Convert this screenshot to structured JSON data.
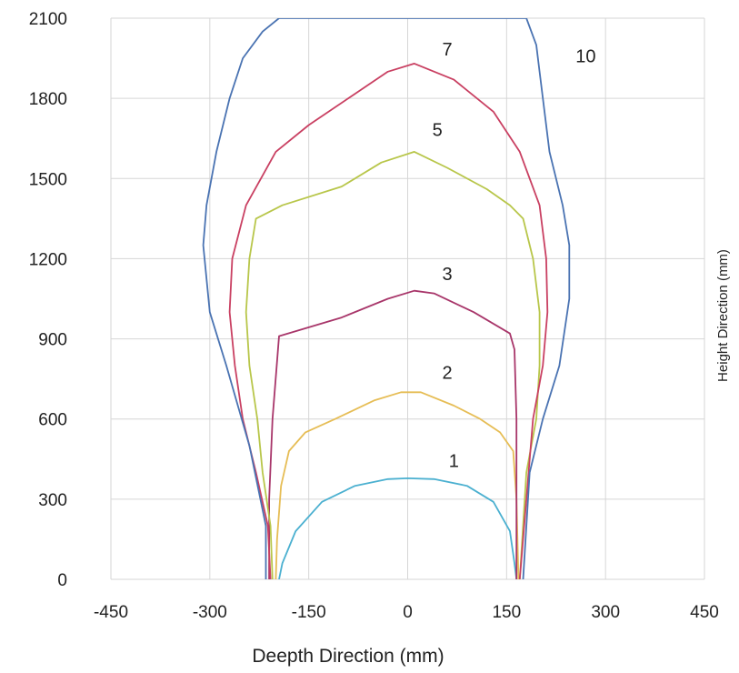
{
  "chart_data": {
    "type": "line",
    "title": "",
    "xlabel": "Deepth Direction (mm)",
    "ylabel": "Height Direction (mm)",
    "xlim": [
      -450,
      450
    ],
    "ylim": [
      0,
      2100
    ],
    "x_ticks": [
      "-450",
      "-300",
      "-150",
      "0",
      "150",
      "300",
      "450"
    ],
    "x_tick_values": [
      -450,
      -300,
      -150,
      0,
      150,
      300,
      450
    ],
    "y_ticks": [
      "0",
      "300",
      "600",
      "900",
      "1200",
      "1500",
      "1800",
      "2100"
    ],
    "y_tick_values": [
      0,
      300,
      600,
      900,
      1200,
      1500,
      1800,
      2100
    ],
    "grid": true,
    "series": [
      {
        "name": "1",
        "color": "#4bb0d0",
        "label_at": [
          70,
          420
        ],
        "x": [
          -195,
          -190,
          -170,
          -130,
          -80,
          -30,
          0,
          40,
          90,
          130,
          155,
          162,
          165
        ],
        "y": [
          0,
          60,
          180,
          290,
          350,
          375,
          378,
          375,
          350,
          290,
          180,
          60,
          0
        ]
      },
      {
        "name": "2",
        "color": "#e6bd55",
        "label_at": [
          60,
          750
        ],
        "x": [
          -200,
          -198,
          -192,
          -180,
          -155,
          -110,
          -50,
          -10,
          20,
          70,
          110,
          140,
          160,
          165,
          168
        ],
        "y": [
          0,
          150,
          350,
          480,
          550,
          600,
          670,
          700,
          700,
          650,
          600,
          550,
          480,
          300,
          0
        ]
      },
      {
        "name": "3",
        "color": "#a8366a",
        "label_at": [
          60,
          1120
        ],
        "x": [
          -210,
          -210,
          -205,
          -195,
          -100,
          -30,
          10,
          40,
          100,
          155,
          162,
          165,
          165
        ],
        "y": [
          0,
          300,
          600,
          910,
          980,
          1050,
          1080,
          1070,
          1000,
          920,
          860,
          600,
          0
        ]
      },
      {
        "name": "5",
        "color": "#b8c64a",
        "label_at": [
          45,
          1660
        ],
        "x": [
          -205,
          -208,
          -220,
          -228,
          -240,
          -245,
          -240,
          -230,
          -190,
          -100,
          -40,
          10,
          60,
          120,
          155,
          175,
          190,
          200,
          200,
          195,
          180,
          170
        ],
        "y": [
          0,
          200,
          400,
          600,
          800,
          1000,
          1200,
          1350,
          1400,
          1470,
          1560,
          1600,
          1540,
          1460,
          1400,
          1350,
          1200,
          1000,
          800,
          600,
          400,
          0
        ]
      },
      {
        "name": "7",
        "color": "#c94062",
        "label_at": [
          60,
          1960
        ],
        "x": [
          -208,
          -212,
          -230,
          -250,
          -262,
          -270,
          -266,
          -245,
          -200,
          -150,
          -90,
          -30,
          10,
          70,
          130,
          170,
          200,
          210,
          212,
          205,
          190,
          170
        ],
        "y": [
          0,
          200,
          400,
          600,
          800,
          1000,
          1200,
          1400,
          1600,
          1700,
          1800,
          1900,
          1930,
          1870,
          1750,
          1600,
          1400,
          1200,
          1000,
          800,
          600,
          0
        ]
      },
      {
        "name": "10",
        "color": "#4a73b2",
        "label_at": [
          270,
          1935
        ],
        "x": [
          -215,
          -215,
          -240,
          -275,
          -300,
          -310,
          -305,
          -290,
          -270,
          -250,
          -220,
          -195,
          -170,
          -150,
          150,
          180,
          195,
          200,
          215,
          235,
          245,
          245,
          230,
          205,
          185,
          175
        ],
        "y": [
          0,
          200,
          500,
          800,
          1000,
          1250,
          1400,
          1600,
          1800,
          1950,
          2050,
          2100,
          2150,
          2180,
          2180,
          2100,
          2000,
          1900,
          1600,
          1400,
          1250,
          1050,
          800,
          600,
          400,
          0
        ]
      }
    ]
  }
}
